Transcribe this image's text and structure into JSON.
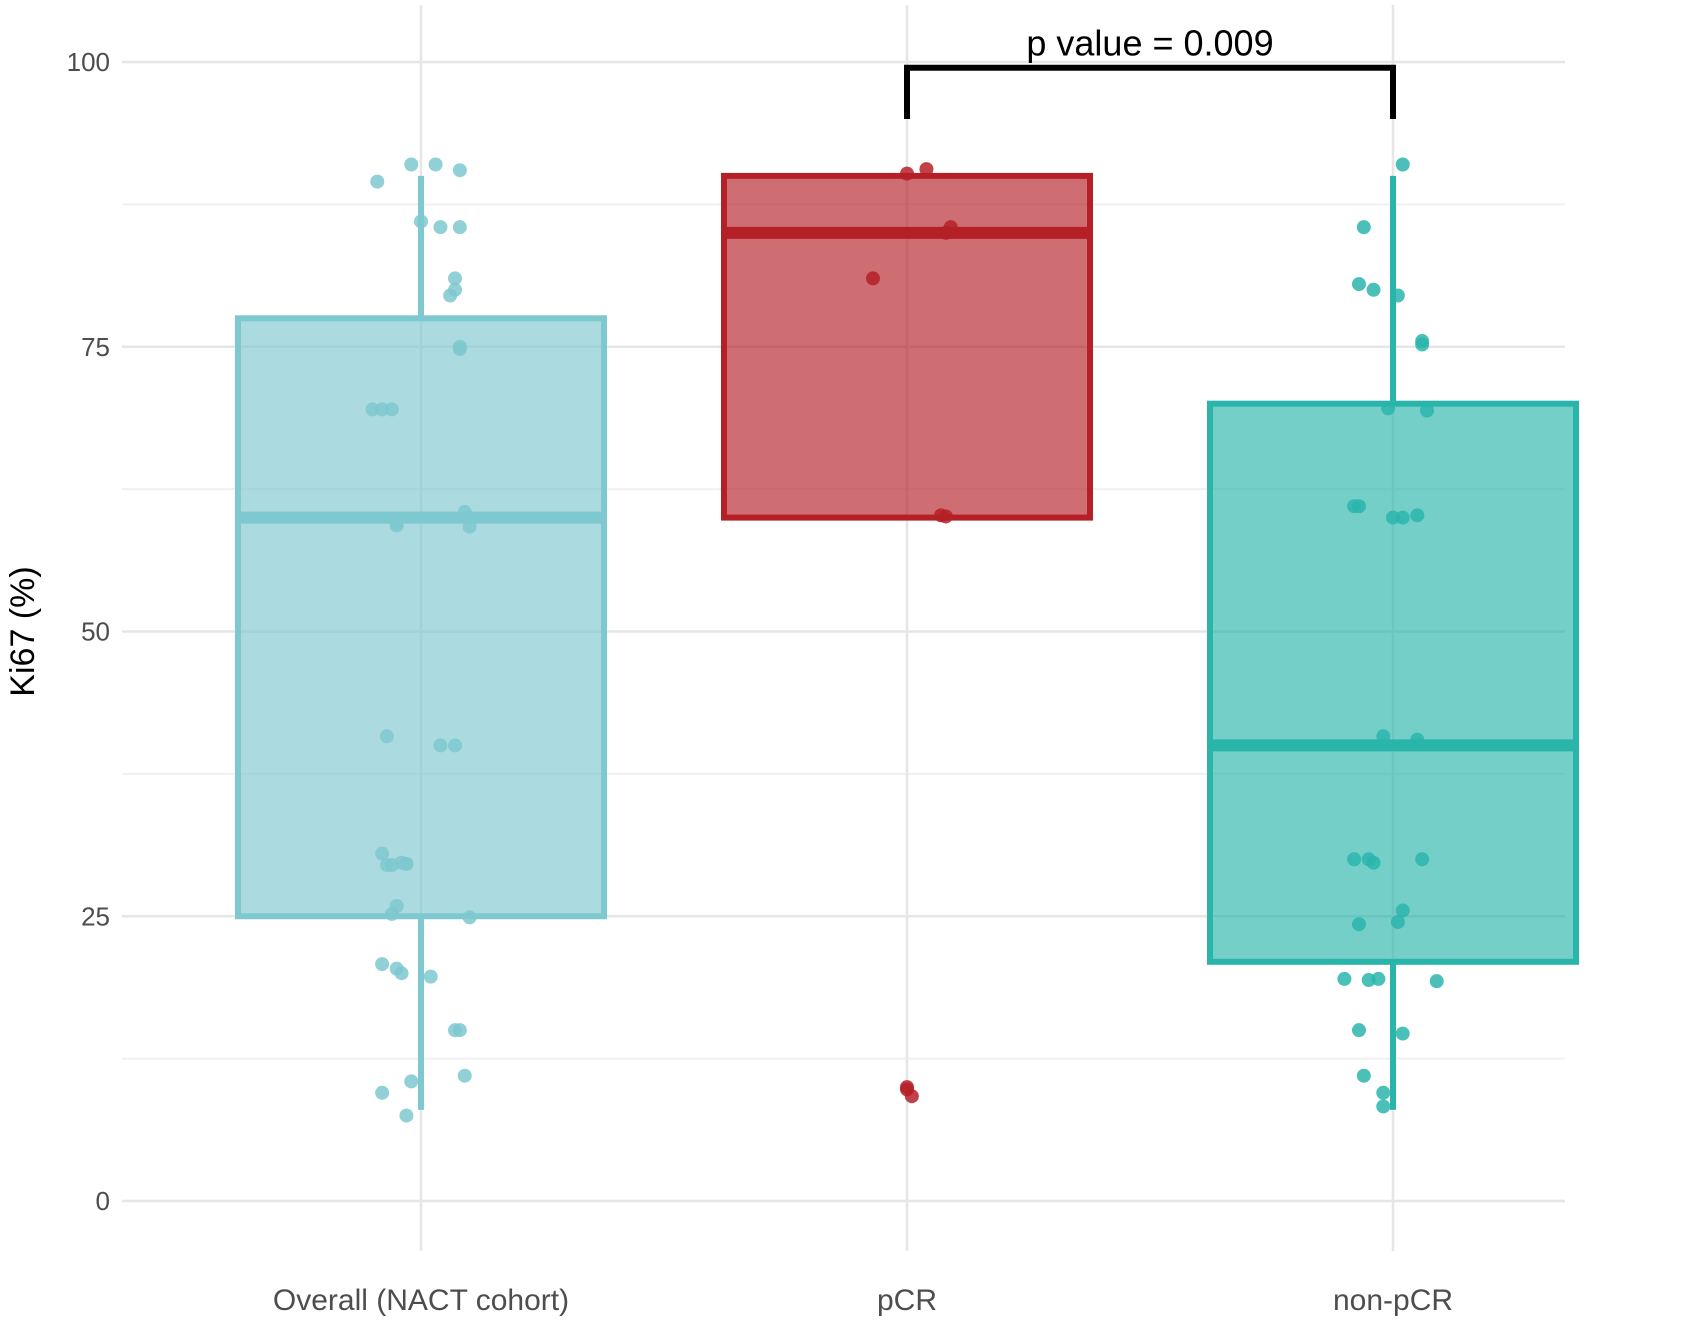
{
  "chart_data": {
    "type": "boxplot",
    "title": "",
    "xlabel": "",
    "ylabel": "Ki67 (%)",
    "ylim": [
      0,
      100
    ],
    "y_ticks": [
      0,
      25,
      50,
      75,
      100
    ],
    "grid": true,
    "legend": "none",
    "categories": [
      "Overall (NACT cohort)",
      "pCR",
      "non-pCR"
    ],
    "series": [
      {
        "category": "Overall (NACT cohort)",
        "color": "#7ec8cf",
        "box": {
          "min": 8,
          "q1": 25,
          "median": 60,
          "q3": 77.5,
          "max": 90
        },
        "points": [
          [
            -0.09,
            89.5
          ],
          [
            -0.02,
            91
          ],
          [
            0.03,
            91
          ],
          [
            0.08,
            90.5
          ],
          [
            0.0,
            86
          ],
          [
            0.04,
            85.5
          ],
          [
            0.08,
            85.5
          ],
          [
            0.07,
            81
          ],
          [
            0.07,
            80
          ],
          [
            0.06,
            79.5
          ],
          [
            0.08,
            75
          ],
          [
            0.08,
            74.8
          ],
          [
            -0.1,
            69.5
          ],
          [
            -0.08,
            69.5
          ],
          [
            -0.06,
            69.5
          ],
          [
            0.09,
            60.5
          ],
          [
            0.1,
            60
          ],
          [
            -0.05,
            59.5
          ],
          [
            -0.05,
            59.3
          ],
          [
            0.1,
            59.2
          ],
          [
            -0.07,
            40.8
          ],
          [
            0.04,
            40
          ],
          [
            0.07,
            40
          ],
          [
            -0.08,
            30.5
          ],
          [
            -0.07,
            29.5
          ],
          [
            -0.06,
            29.5
          ],
          [
            -0.04,
            29.7
          ],
          [
            -0.03,
            29.6
          ],
          [
            -0.03,
            29.6
          ],
          [
            -0.06,
            25.2
          ],
          [
            -0.05,
            25.9
          ],
          [
            0.1,
            24.9
          ],
          [
            -0.08,
            20.8
          ],
          [
            -0.05,
            20.4
          ],
          [
            -0.04,
            20
          ],
          [
            0.02,
            19.7
          ],
          [
            0.07,
            15
          ],
          [
            0.08,
            15
          ],
          [
            -0.02,
            10.5
          ],
          [
            0.09,
            11
          ],
          [
            -0.08,
            9.5
          ],
          [
            -0.03,
            7.5
          ]
        ]
      },
      {
        "category": "pCR",
        "color": "#b52027",
        "box": {
          "min": 60,
          "q1": 60,
          "median": 85,
          "q3": 90,
          "max": 90
        },
        "points": [
          [
            0.0,
            90.2
          ],
          [
            0.04,
            90.6
          ],
          [
            0.09,
            85.5
          ],
          [
            0.08,
            85
          ],
          [
            -0.07,
            81
          ],
          [
            0.07,
            60.2
          ],
          [
            0.08,
            60.1
          ],
          [
            0.0,
            10
          ],
          [
            0.0,
            9.8
          ],
          [
            0.01,
            9.2
          ]
        ]
      },
      {
        "category": "non-pCR",
        "color": "#2ab5ab",
        "box": {
          "min": 8,
          "q1": 21,
          "median": 40,
          "q3": 70,
          "max": 90
        },
        "points": [
          [
            0.02,
            91
          ],
          [
            -0.06,
            85.5
          ],
          [
            -0.07,
            80.5
          ],
          [
            -0.04,
            80
          ],
          [
            0.01,
            79.5
          ],
          [
            0.06,
            75.5
          ],
          [
            0.06,
            75.2
          ],
          [
            -0.01,
            69.6
          ],
          [
            0.07,
            69.4
          ],
          [
            -0.08,
            61
          ],
          [
            -0.07,
            61
          ],
          [
            0.0,
            60
          ],
          [
            0.02,
            60
          ],
          [
            0.05,
            60.2
          ],
          [
            -0.02,
            40.8
          ],
          [
            0.05,
            40.5
          ],
          [
            -0.08,
            30
          ],
          [
            -0.05,
            30
          ],
          [
            -0.04,
            29.7
          ],
          [
            0.06,
            30
          ],
          [
            -0.07,
            24.3
          ],
          [
            0.01,
            24.5
          ],
          [
            0.02,
            25.5
          ],
          [
            -0.1,
            19.5
          ],
          [
            -0.05,
            19.4
          ],
          [
            -0.03,
            19.5
          ],
          [
            0.09,
            19.3
          ],
          [
            -0.07,
            15
          ],
          [
            0.02,
            14.7
          ],
          [
            -0.06,
            11
          ],
          [
            -0.02,
            9.5
          ],
          [
            -0.02,
            8.3
          ]
        ]
      }
    ],
    "annotation": {
      "text": "p value = 0.009",
      "from_category": "pCR",
      "to_category": "non-pCR",
      "bracket_top": 99.5,
      "bracket_bottom": 95
    }
  }
}
